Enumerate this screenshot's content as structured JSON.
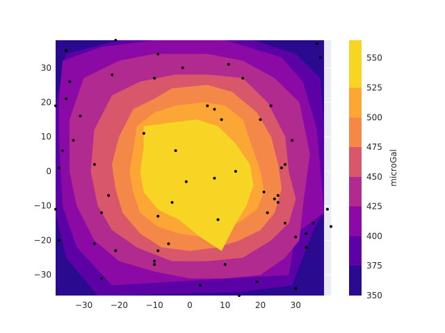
{
  "chart_data": {
    "type": "contourf",
    "xlim": [
      -38,
      40
    ],
    "ylim": [
      -36,
      38
    ],
    "x_ticks": [
      -30,
      -20,
      -10,
      0,
      10,
      20,
      30
    ],
    "y_ticks": [
      -30,
      -20,
      -10,
      0,
      10,
      20,
      30
    ],
    "x_tick_labels": [
      "−30",
      "−20",
      "−10",
      "0",
      "10",
      "20",
      "30"
    ],
    "y_tick_labels": [
      "−30",
      "−20",
      "−10",
      "0",
      "10",
      "20",
      "30"
    ],
    "grid": true,
    "colormap": "plasma",
    "colorbar": {
      "label": "microGal",
      "range": [
        350,
        565
      ],
      "ticks": [
        350,
        375,
        400,
        425,
        450,
        475,
        500,
        525,
        550
      ]
    },
    "levels": [
      {
        "min": 350,
        "max": 375,
        "color": "#2a0a8f"
      },
      {
        "min": 375,
        "max": 400,
        "color": "#5c01a6"
      },
      {
        "min": 400,
        "max": 425,
        "color": "#8b0aa5"
      },
      {
        "min": 425,
        "max": 450,
        "color": "#b12a90"
      },
      {
        "min": 450,
        "max": 475,
        "color": "#d8576b"
      },
      {
        "min": 475,
        "max": 500,
        "color": "#f48849"
      },
      {
        "min": 500,
        "max": 525,
        "color": "#fca636"
      },
      {
        "min": 525,
        "max": 565,
        "color": "#f8d425"
      }
    ],
    "regions": [
      {
        "level": 0,
        "polygon": [
          [
            -38,
            38
          ],
          [
            38,
            38
          ],
          [
            38,
            -36
          ],
          [
            -38,
            -36
          ]
        ]
      },
      {
        "level": 1,
        "polygon": [
          [
            -35,
            34
          ],
          [
            -20,
            38
          ],
          [
            18,
            38
          ],
          [
            30,
            34
          ],
          [
            37,
            27
          ],
          [
            38,
            12
          ],
          [
            38,
            -12
          ],
          [
            35,
            -17
          ],
          [
            29,
            -33
          ],
          [
            14,
            -35
          ],
          [
            -26,
            -36
          ],
          [
            -35,
            -25
          ],
          [
            -38,
            -12
          ],
          [
            -38,
            5
          ],
          [
            -38,
            19
          ]
        ]
      },
      {
        "level": 2,
        "polygon": [
          [
            -36,
            32
          ],
          [
            -25,
            36
          ],
          [
            -10,
            38
          ],
          [
            10,
            38
          ],
          [
            26,
            33
          ],
          [
            32,
            26
          ],
          [
            36,
            12
          ],
          [
            38,
            -12
          ],
          [
            30,
            -18
          ],
          [
            28,
            -30
          ],
          [
            -22,
            -33
          ],
          [
            -32,
            -22
          ],
          [
            -36,
            -10
          ],
          [
            -37,
            10
          ],
          [
            -37,
            20
          ]
        ]
      },
      {
        "level": 3,
        "polygon": [
          [
            -30,
            27
          ],
          [
            -20,
            32
          ],
          [
            -10,
            34
          ],
          [
            5,
            34
          ],
          [
            15,
            32
          ],
          [
            24,
            27
          ],
          [
            31,
            20
          ],
          [
            34,
            5
          ],
          [
            32,
            -10
          ],
          [
            31,
            -20
          ],
          [
            27,
            -25
          ],
          [
            20,
            -30
          ],
          [
            10,
            -31
          ],
          [
            0,
            -31
          ],
          [
            -10,
            -29
          ],
          [
            -20,
            -26
          ],
          [
            -27,
            -20
          ],
          [
            -32,
            -10
          ],
          [
            -34,
            0
          ],
          [
            -34,
            15
          ]
        ]
      },
      {
        "level": 4,
        "polygon": [
          [
            -22,
            22
          ],
          [
            -14,
            26
          ],
          [
            -4,
            28
          ],
          [
            5,
            28
          ],
          [
            15,
            27
          ],
          [
            22,
            20
          ],
          [
            27,
            10
          ],
          [
            28,
            0
          ],
          [
            30,
            -8
          ],
          [
            28,
            -15
          ],
          [
            23,
            -20
          ],
          [
            15,
            -25
          ],
          [
            5,
            -26
          ],
          [
            -5,
            -26
          ],
          [
            -15,
            -22
          ],
          [
            -22,
            -17
          ],
          [
            -26,
            -10
          ],
          [
            -28,
            0
          ],
          [
            -27,
            12
          ]
        ]
      },
      {
        "level": 5,
        "polygon": [
          [
            -16,
            18
          ],
          [
            -10,
            21
          ],
          [
            -5,
            24
          ],
          [
            5,
            25
          ],
          [
            12,
            23
          ],
          [
            19,
            17
          ],
          [
            23,
            10
          ],
          [
            25,
            2
          ],
          [
            26,
            -5
          ],
          [
            24,
            -12
          ],
          [
            20,
            -17
          ],
          [
            14,
            -20
          ],
          [
            8,
            -22
          ],
          [
            0,
            -23
          ],
          [
            -8,
            -22
          ],
          [
            -14,
            -18
          ],
          [
            -19,
            -12
          ],
          [
            -21,
            -5
          ],
          [
            -22,
            2
          ],
          [
            -20,
            10
          ]
        ]
      },
      {
        "level": 6,
        "polygon": [
          [
            -15,
            13
          ],
          [
            -10,
            17
          ],
          [
            -4,
            19
          ],
          [
            4,
            20
          ],
          [
            10,
            19
          ],
          [
            15,
            15
          ],
          [
            17,
            9
          ],
          [
            20,
            0
          ],
          [
            21,
            -6
          ],
          [
            19,
            -11
          ],
          [
            15,
            -14
          ],
          [
            10,
            -17
          ],
          [
            4,
            -19
          ],
          [
            -3,
            -18
          ],
          [
            -9,
            -16
          ],
          [
            -14,
            -12
          ],
          [
            -16,
            -6
          ],
          [
            -17,
            0
          ],
          [
            -16,
            6
          ]
        ]
      },
      {
        "level": 7,
        "polygon": [
          [
            -13,
            13
          ],
          [
            -6,
            14
          ],
          [
            2,
            15
          ],
          [
            8,
            13
          ],
          [
            13,
            8
          ],
          [
            17,
            2
          ],
          [
            18,
            -4
          ],
          [
            16,
            -10
          ],
          [
            13,
            -15
          ],
          [
            9,
            -23
          ],
          [
            3,
            -19
          ],
          [
            -3,
            -14
          ],
          [
            -9,
            -11
          ],
          [
            -13,
            -6
          ],
          [
            -14,
            0
          ],
          [
            -13,
            7
          ]
        ]
      }
    ],
    "points": [
      [
        -35,
        35
      ],
      [
        -34,
        26
      ],
      [
        -35,
        21
      ],
      [
        -38,
        19
      ],
      [
        -31,
        16
      ],
      [
        -33,
        9
      ],
      [
        -36,
        6
      ],
      [
        -37,
        1
      ],
      [
        -38,
        -11
      ],
      [
        -37,
        -20
      ],
      [
        -21,
        38
      ],
      [
        -22,
        28
      ],
      [
        -9,
        34
      ],
      [
        -10,
        27
      ],
      [
        -2,
        30
      ],
      [
        11,
        31
      ],
      [
        15,
        27
      ],
      [
        23,
        19
      ],
      [
        5,
        19
      ],
      [
        7,
        18
      ],
      [
        9,
        15
      ],
      [
        20,
        15
      ],
      [
        29,
        9
      ],
      [
        -13,
        11
      ],
      [
        -4,
        6
      ],
      [
        -27,
        2
      ],
      [
        -23,
        -7
      ],
      [
        -25,
        -12
      ],
      [
        -5,
        -9
      ],
      [
        -1,
        -3
      ],
      [
        7,
        -2
      ],
      [
        13,
        0
      ],
      [
        26,
        1
      ],
      [
        27,
        2
      ],
      [
        21,
        -6
      ],
      [
        24,
        -8
      ],
      [
        25,
        -7
      ],
      [
        25,
        -9
      ],
      [
        22,
        -12
      ],
      [
        27,
        -15
      ],
      [
        8,
        -14
      ],
      [
        -9,
        -13
      ],
      [
        30,
        -19
      ],
      [
        33,
        -18
      ],
      [
        33,
        -22
      ],
      [
        35,
        -15
      ],
      [
        39,
        -11
      ],
      [
        40,
        -16
      ],
      [
        36,
        37
      ],
      [
        37,
        33
      ],
      [
        -27,
        -21
      ],
      [
        -21,
        -23
      ],
      [
        -9,
        -23
      ],
      [
        -6,
        -21
      ],
      [
        -10,
        -26
      ],
      [
        -10,
        -27
      ],
      [
        10,
        -27
      ],
      [
        -25,
        -31
      ],
      [
        3,
        -33
      ],
      [
        19,
        -32
      ],
      [
        30,
        -34
      ],
      [
        14,
        -36
      ]
    ]
  }
}
